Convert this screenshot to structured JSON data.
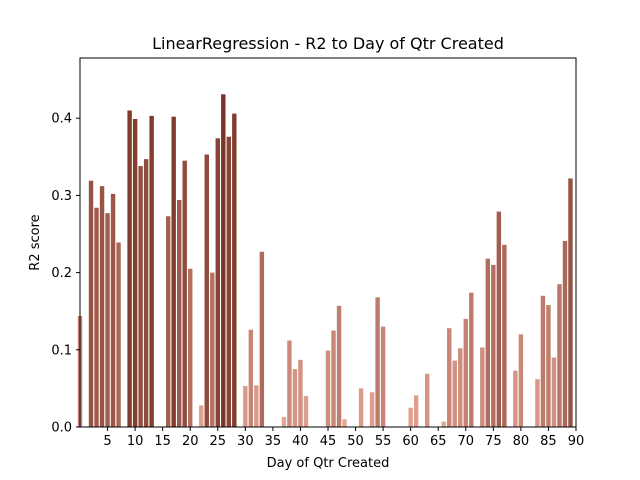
{
  "chart_data": {
    "type": "bar",
    "title": "LinearRegression - R2 to Day of Qtr Created",
    "xlabel": "Day of Qtr Created",
    "ylabel": "R2 score",
    "xlim": [
      0,
      90
    ],
    "ylim": [
      0,
      0.478
    ],
    "x_ticks": [
      5,
      10,
      15,
      20,
      25,
      30,
      35,
      40,
      45,
      50,
      55,
      60,
      65,
      70,
      75,
      80,
      85,
      90
    ],
    "x_tick_labels": [
      "5",
      "10",
      "15",
      "20",
      "25",
      "30",
      "35",
      "40",
      "45",
      "50",
      "55",
      "60",
      "65",
      "70",
      "75",
      "80",
      "85",
      "90"
    ],
    "y_ticks": [
      0.0,
      0.1,
      0.2,
      0.3,
      0.4
    ],
    "y_tick_labels": [
      "0.0",
      "0.1",
      "0.2",
      "0.3",
      "0.4"
    ],
    "grid": false,
    "legend": "none",
    "bar_color_low": "#e8a898",
    "bar_color_high": "#7a3526",
    "days": [
      0,
      1,
      2,
      3,
      4,
      5,
      6,
      7,
      8,
      9,
      10,
      11,
      12,
      13,
      14,
      15,
      16,
      17,
      18,
      19,
      20,
      21,
      22,
      23,
      24,
      25,
      26,
      27,
      28,
      29,
      30,
      31,
      32,
      33,
      34,
      35,
      36,
      37,
      38,
      39,
      40,
      41,
      42,
      43,
      44,
      45,
      46,
      47,
      48,
      49,
      50,
      51,
      52,
      53,
      54,
      55,
      56,
      57,
      58,
      59,
      60,
      61,
      62,
      63,
      64,
      65,
      66,
      67,
      68,
      69,
      70,
      71,
      72,
      73,
      74,
      75,
      76,
      77,
      78,
      79,
      80,
      81,
      82,
      83,
      84,
      85,
      86,
      87,
      88,
      89
    ],
    "values": [
      0.144,
      0,
      0.319,
      0.284,
      0.312,
      0.277,
      0.302,
      0.239,
      0,
      0.41,
      0.399,
      0.338,
      0.347,
      0.403,
      0,
      0,
      0.273,
      0.402,
      0.294,
      0.345,
      0.205,
      0,
      0.028,
      0.353,
      0.2,
      0.374,
      0.431,
      0.376,
      0.406,
      0,
      0.053,
      0.126,
      0.054,
      0.227,
      0,
      0,
      0,
      0.013,
      0.112,
      0.075,
      0.087,
      0.04,
      0,
      0,
      0,
      0.099,
      0.125,
      0.157,
      0.01,
      0,
      0,
      0.05,
      0,
      0.045,
      0.168,
      0.13,
      0,
      0,
      0,
      0,
      0.025,
      0.041,
      0,
      0.069,
      0,
      0,
      0.007,
      0.128,
      0.086,
      0.102,
      0.14,
      0.174,
      0,
      0.103,
      0.218,
      0.21,
      0.279,
      0.236,
      0,
      0.073,
      0.12,
      0,
      0,
      0.062,
      0.17,
      0.158,
      0.09,
      0.185,
      0.241,
      0.322
    ]
  }
}
